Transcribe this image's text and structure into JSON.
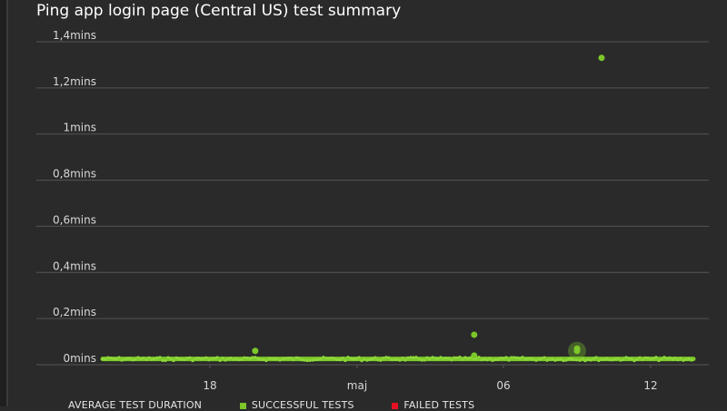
{
  "title": "Ping app login page (Central US) test summary",
  "legend": {
    "items": [
      {
        "label": "AVERAGE TEST DURATION",
        "color": ""
      },
      {
        "label": "SUCCESSFUL TESTS",
        "color": "#7cc729"
      },
      {
        "label": "FAILED TESTS",
        "color": "#e81123"
      }
    ]
  },
  "colors": {
    "background": "#2a2a2a",
    "grid": "#555555",
    "series": "#7cc729"
  },
  "chart_data": {
    "type": "scatter",
    "title": "Ping app login page (Central US) test summary",
    "xlabel": "",
    "ylabel": "",
    "y_unit": "mins",
    "ylim": [
      0,
      1.4
    ],
    "yticks": [
      {
        "value": 0,
        "label": "0mins"
      },
      {
        "value": 0.2,
        "label": "0,2mins"
      },
      {
        "value": 0.4,
        "label": "0,4mins"
      },
      {
        "value": 0.6,
        "label": "0,6mins"
      },
      {
        "value": 0.8,
        "label": "0,8mins"
      },
      {
        "value": 1.0,
        "label": "1mins"
      },
      {
        "value": 1.2,
        "label": "1,2mins"
      },
      {
        "value": 1.4,
        "label": "1,4mins"
      }
    ],
    "xlim": [
      "2019-04-11",
      "2019-05-16"
    ],
    "xticks": [
      {
        "value": "2019-04-18",
        "label": "18"
      },
      {
        "value": "2019-05-01",
        "label": "maj"
      },
      {
        "value": "2019-05-06",
        "label": "06"
      },
      {
        "value": "2019-05-12",
        "label": "12"
      }
    ],
    "grid": true,
    "legend_position": "bottom",
    "series": [
      {
        "name": "SUCCESSFUL TESTS",
        "color": "#7cc729",
        "baseline": {
          "x_start": "2019-04-11",
          "x_end": "2019-05-15",
          "y": 0.025
        },
        "points": [
          {
            "x": "2019-04-22",
            "y": 0.06
          },
          {
            "x": "2019-05-05",
            "y": 0.13
          },
          {
            "x": "2019-05-05",
            "y": 0.04
          },
          {
            "x": "2019-05-09",
            "y": 0.07
          },
          {
            "x": "2019-05-09",
            "y": 0.06
          },
          {
            "x": "2019-05-10",
            "y": 1.33
          }
        ],
        "highlight": {
          "x": "2019-05-09",
          "y": 0.06
        }
      },
      {
        "name": "FAILED TESTS",
        "color": "#e81123",
        "points": []
      }
    ]
  }
}
